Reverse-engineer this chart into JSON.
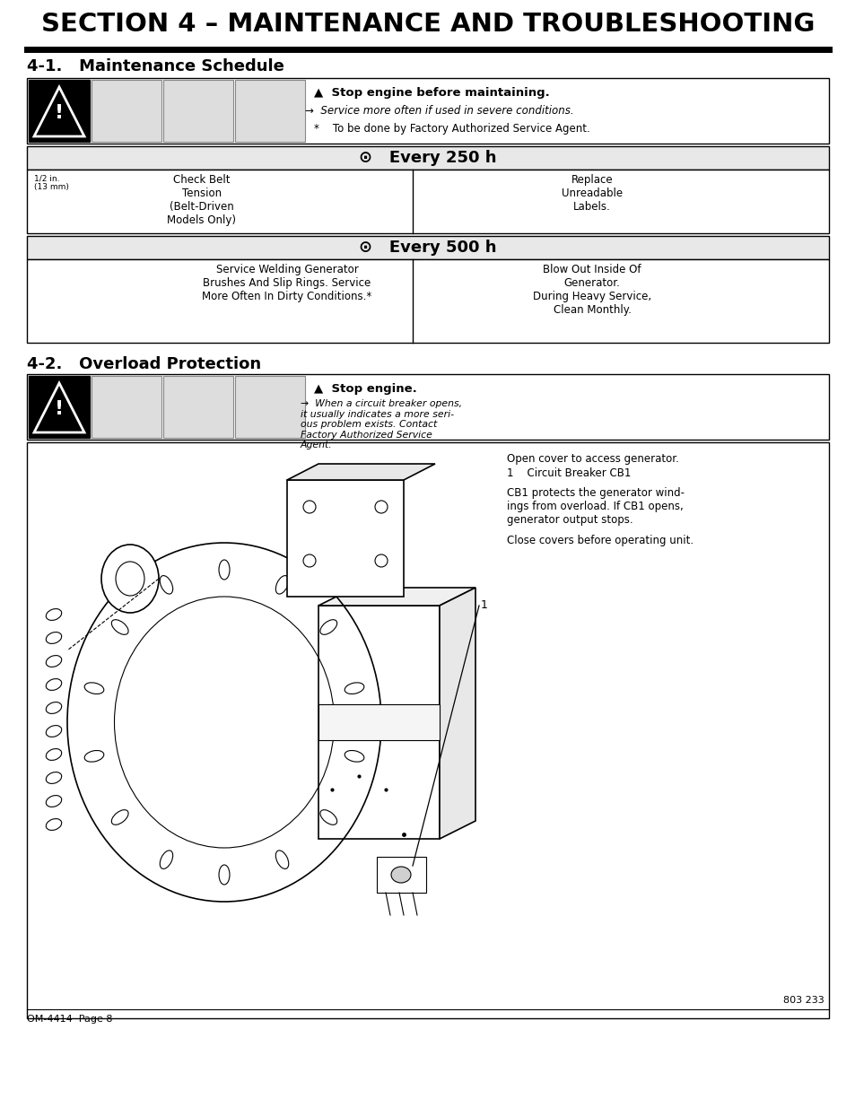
{
  "title": "SECTION 4 – MAINTENANCE AND TROUBLESHOOTING",
  "section1_title": "4-1.   Maintenance Schedule",
  "section2_title": "4-2.   Overload Protection",
  "every250_label": "⊙   Every 250 h",
  "every500_label": "⊙   Every 500 h",
  "warn_bold": "▲  Stop engine before maintaining.",
  "warn_italic": "Service more often if used in severe conditions.",
  "warn_star": "*    To be done by Factory Authorized Service Agent.",
  "belt_dim": "1/2 in.\n(13 mm)",
  "check_belt": "Check Belt\nTension\n(Belt-Driven\nModels Only)",
  "replace_labels": "Replace\nUnreadable\nLabels.",
  "service_gen": "Service Welding Generator\nBrushes And Slip Rings. Service\nMore Often In Dirty Conditions.*",
  "blow_out": "Blow Out Inside Of\nGenerator.\nDuring Heavy Service,\nClean Monthly.",
  "stop_engine": "▲  Stop engine.",
  "cb_note_italic": "When a circuit breaker opens,\nit usually indicates a more seri-\nous problem exists. Contact\nFactory Authorized Service\nAgent.",
  "open_cover": "Open cover to access generator.",
  "cb1_item": "1    Circuit Breaker CB1",
  "cb1_desc": "CB1 protects the generator wind-\nings from overload. If CB1 opens,\ngenerator output stops.",
  "close_covers": "Close covers before operating unit.",
  "footer_left": "OM-4414  Page 8",
  "footer_right": "803 233",
  "L": 30,
  "R": 924,
  "bg": "#ffffff",
  "section_bg": "#e8e8e8",
  "black": "#000000",
  "icon_gray": "#cccccc"
}
